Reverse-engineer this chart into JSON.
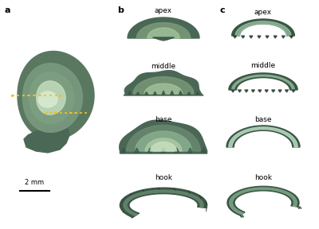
{
  "panel_a_label": "a",
  "panel_b_label": "b",
  "panel_c_label": "c",
  "b_sublabels": [
    "apex",
    "middle",
    "base",
    "hook"
  ],
  "c_sublabels": [
    "apex",
    "middle",
    "base",
    "hook"
  ],
  "scalebar_text": "2 mm",
  "bg_color": "#ffffff",
  "label_fontsize": 8,
  "sublabel_fontsize": 6.5,
  "scalebar_fontsize": 6,
  "cochlea_outer": "#4a6650",
  "cochlea_mid": "#7a9a80",
  "cochlea_light": "#b8d0b0",
  "cochlea_inner": "#d0e0c0",
  "yellow_line_color": "#f0c020",
  "figsize": [
    4.0,
    2.88
  ],
  "dpi": 100
}
